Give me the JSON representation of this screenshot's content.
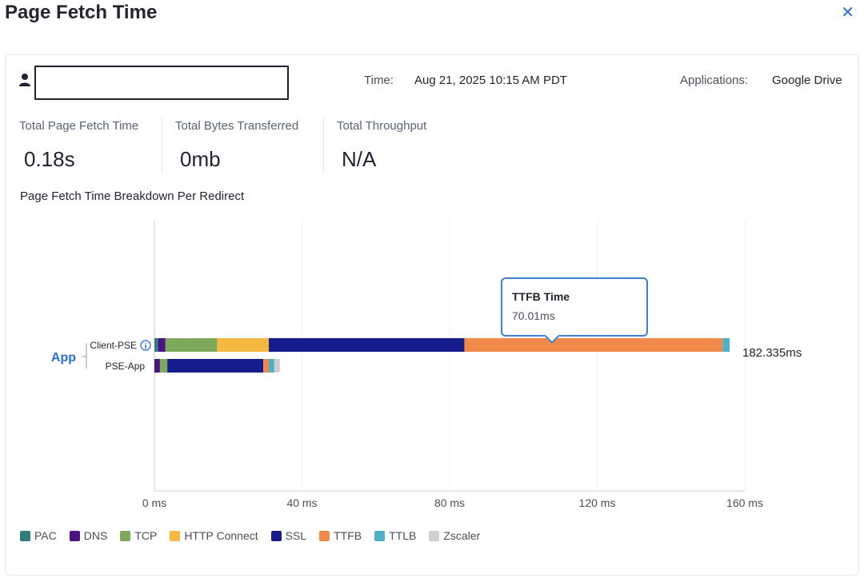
{
  "header": {
    "title": "Page Fetch Time",
    "close_icon": "close-icon"
  },
  "user": {
    "icon": "user-icon",
    "value": ""
  },
  "meta": {
    "time_label": "Time:",
    "time_value": "Aug 21, 2025 10:15 AM PDT",
    "applications_label": "Applications:",
    "applications_value": "Google Drive"
  },
  "stats": [
    {
      "label": "Total Page Fetch Time",
      "value": "0.18s"
    },
    {
      "label": "Total Bytes Transferred",
      "value": "0mb"
    },
    {
      "label": "Total Throughput",
      "value": "N/A"
    }
  ],
  "breakdown_title": "Page Fetch Time Breakdown Per Redirect",
  "tooltip": {
    "title": "TTFB Time",
    "value": "70.01ms"
  },
  "chart_data": {
    "type": "bar",
    "orientation": "horizontal",
    "stacked": true,
    "group_label": "App",
    "categories": [
      "Client-PSE",
      "PSE-App"
    ],
    "category_info_icon": {
      "Client-PSE": "info-icon"
    },
    "x_ticks": [
      "0 ms",
      "40 ms",
      "80 ms",
      "120 ms",
      "160 ms"
    ],
    "xlim": [
      0,
      160
    ],
    "grid": true,
    "legend_position": "bottom-left",
    "total_label": "182.335ms",
    "series": [
      {
        "name": "PAC",
        "color": "#2f7e7e",
        "values": [
          1.0,
          0.0
        ]
      },
      {
        "name": "DNS",
        "color": "#4b1281",
        "values": [
          2.0,
          1.5
        ]
      },
      {
        "name": "TCP",
        "color": "#7caa5a",
        "values": [
          14.0,
          2.0
        ]
      },
      {
        "name": "HTTP Connect",
        "color": "#f5b942",
        "values": [
          14.0,
          0.0
        ]
      },
      {
        "name": "SSL",
        "color": "#161c8c",
        "values": [
          53.0,
          26.0
        ]
      },
      {
        "name": "TTFB",
        "color": "#f0894a",
        "values": [
          70.01,
          1.5
        ]
      },
      {
        "name": "TTLB",
        "color": "#4fb1c4",
        "values": [
          1.9,
          1.5
        ]
      },
      {
        "name": "Zscaler",
        "color": "#cfcfcf",
        "values": [
          0.0,
          1.5
        ]
      }
    ]
  }
}
